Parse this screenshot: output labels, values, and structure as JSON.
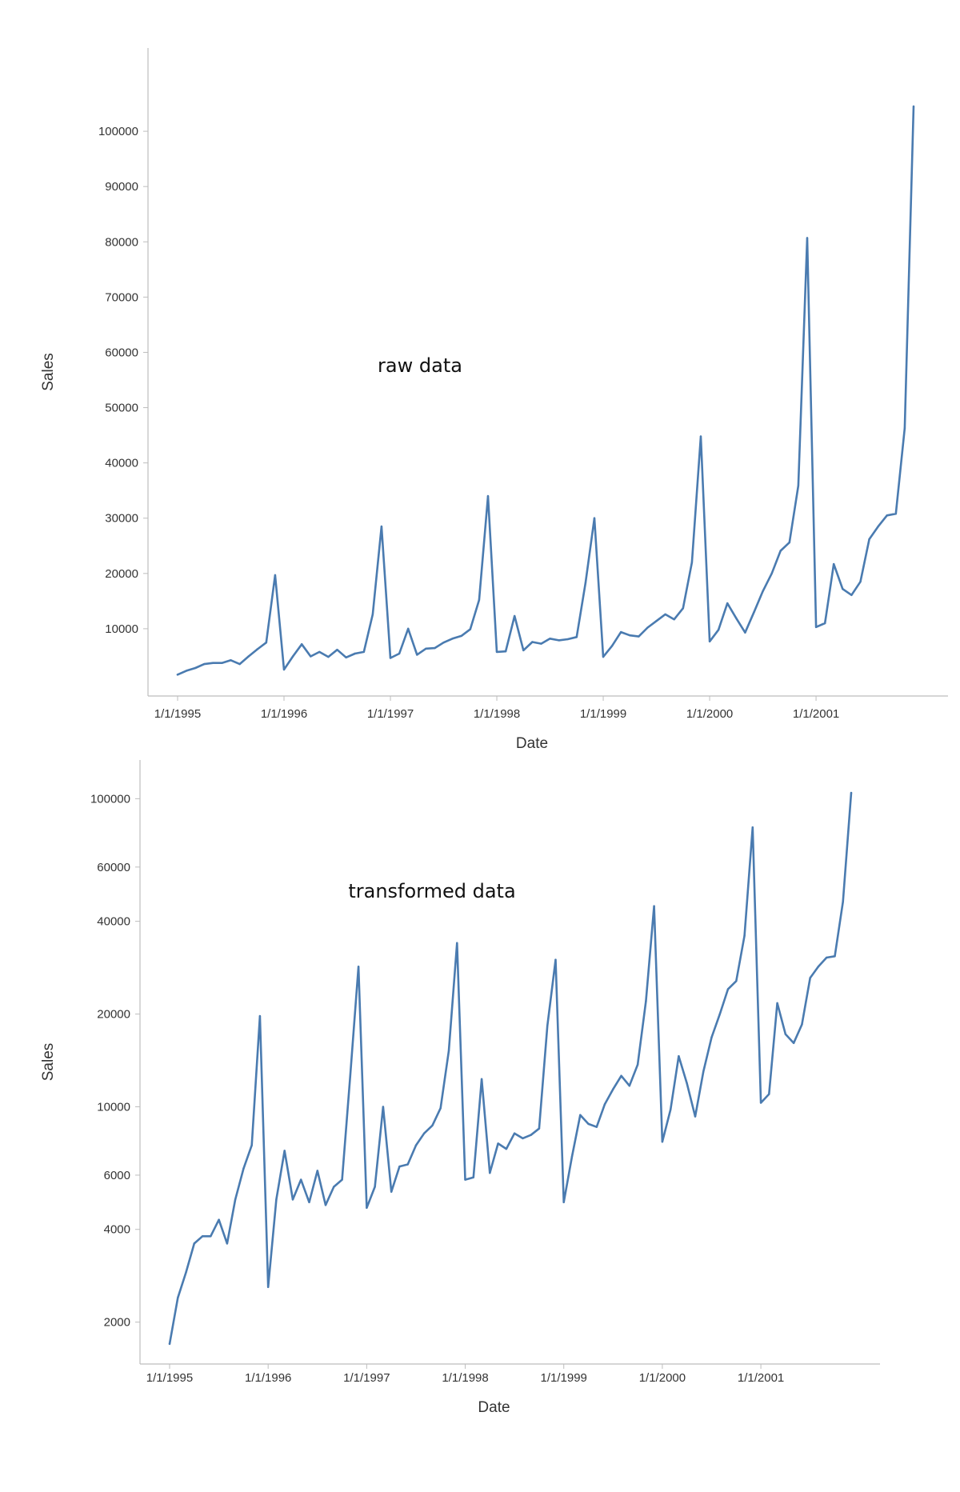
{
  "chart_data": [
    {
      "type": "line",
      "title": "",
      "annotation": "raw data",
      "xlabel": "Date",
      "ylabel": "Sales",
      "yscale": "linear",
      "ylim": [
        0,
        110000
      ],
      "y_ticks": [
        10000,
        20000,
        30000,
        40000,
        50000,
        60000,
        70000,
        80000,
        90000,
        100000
      ],
      "y_tick_labels": [
        "10000",
        "20000",
        "30000",
        "40000",
        "50000",
        "60000",
        "70000",
        "80000",
        "90000",
        "100000"
      ],
      "x_range": [
        "1995-01",
        "2001-12"
      ],
      "x_ticks": [
        "1995-01",
        "1996-01",
        "1997-01",
        "1998-01",
        "1999-01",
        "2000-01",
        "2001-01"
      ],
      "x_tick_labels": [
        "1/1/1995",
        "1/1/1996",
        "1/1/1997",
        "1/1/1998",
        "1/1/1999",
        "1/1/2000",
        "1/1/2001"
      ],
      "grid": false,
      "series": [
        {
          "color": "#4a7bb0",
          "x": [
            "1995-01",
            "1995-02",
            "1995-03",
            "1995-04",
            "1995-05",
            "1995-06",
            "1995-07",
            "1995-08",
            "1995-09",
            "1995-10",
            "1995-11",
            "1995-12",
            "1996-01",
            "1996-02",
            "1996-03",
            "1996-04",
            "1996-05",
            "1996-06",
            "1996-07",
            "1996-08",
            "1996-09",
            "1996-10",
            "1996-11",
            "1996-12",
            "1997-01",
            "1997-02",
            "1997-03",
            "1997-04",
            "1997-05",
            "1997-06",
            "1997-07",
            "1997-08",
            "1997-09",
            "1997-10",
            "1997-11",
            "1997-12",
            "1998-01",
            "1998-02",
            "1998-03",
            "1998-04",
            "1998-05",
            "1998-06",
            "1998-07",
            "1998-08",
            "1998-09",
            "1998-10",
            "1998-11",
            "1998-12",
            "1999-01",
            "1999-02",
            "1999-03",
            "1999-04",
            "1999-05",
            "1999-06",
            "1999-07",
            "1999-08",
            "1999-09",
            "1999-10",
            "1999-11",
            "1999-12",
            "2000-01",
            "2000-02",
            "2000-03",
            "2000-04",
            "2000-05",
            "2000-06",
            "2000-07",
            "2000-08",
            "2000-09",
            "2000-10",
            "2000-11",
            "2000-12",
            "2001-01",
            "2001-02",
            "2001-03",
            "2001-04",
            "2001-05",
            "2001-06",
            "2001-07",
            "2001-08",
            "2001-09",
            "2001-10",
            "2001-11",
            "2001-12"
          ],
          "values": [
            1700,
            2400,
            2900,
            3600,
            3800,
            3800,
            4300,
            3600,
            5000,
            6300,
            7500,
            19700,
            2600,
            5000,
            7200,
            5000,
            5800,
            4900,
            6200,
            4800,
            5500,
            5800,
            12600,
            28500,
            4700,
            5500,
            10000,
            5300,
            6400,
            6500,
            7500,
            8200,
            8700,
            9900,
            15200,
            34000,
            5800,
            5900,
            12300,
            6100,
            7600,
            7300,
            8200,
            7900,
            8100,
            8500,
            18300,
            30000,
            4900,
            6900,
            9400,
            8800,
            8600,
            10200,
            11400,
            12600,
            11700,
            13700,
            22000,
            44800,
            7700,
            9800,
            14600,
            11900,
            9300,
            13000,
            16800,
            20000,
            24100,
            25600,
            35900,
            80700,
            10300,
            11000,
            21700,
            17200,
            16100,
            18500,
            26200,
            28500,
            30500,
            30800,
            46300,
            104500
          ]
        }
      ]
    },
    {
      "type": "line",
      "title": "",
      "annotation": "transformed data",
      "xlabel": "Date",
      "ylabel": "Sales",
      "yscale": "log",
      "ylim": [
        1600,
        115000
      ],
      "y_ticks": [
        2000,
        4000,
        6000,
        10000,
        20000,
        40000,
        60000,
        100000
      ],
      "y_tick_labels": [
        "2000",
        "4000",
        "6000",
        "10000",
        "20000",
        "40000",
        "60000",
        "100000"
      ],
      "x_range": [
        "1995-01",
        "2001-12"
      ],
      "x_ticks": [
        "1995-01",
        "1996-01",
        "1997-01",
        "1998-01",
        "1999-01",
        "2000-01",
        "2001-01"
      ],
      "x_tick_labels": [
        "1/1/1995",
        "1/1/1996",
        "1/1/1997",
        "1/1/1998",
        "1/1/1999",
        "1/1/2000",
        "1/1/2001"
      ],
      "grid": false,
      "series": [
        {
          "color": "#4a7bb0",
          "x": [
            "1995-01",
            "1995-02",
            "1995-03",
            "1995-04",
            "1995-05",
            "1995-06",
            "1995-07",
            "1995-08",
            "1995-09",
            "1995-10",
            "1995-11",
            "1995-12",
            "1996-01",
            "1996-02",
            "1996-03",
            "1996-04",
            "1996-05",
            "1996-06",
            "1996-07",
            "1996-08",
            "1996-09",
            "1996-10",
            "1996-11",
            "1996-12",
            "1997-01",
            "1997-02",
            "1997-03",
            "1997-04",
            "1997-05",
            "1997-06",
            "1997-07",
            "1997-08",
            "1997-09",
            "1997-10",
            "1997-11",
            "1997-12",
            "1998-01",
            "1998-02",
            "1998-03",
            "1998-04",
            "1998-05",
            "1998-06",
            "1998-07",
            "1998-08",
            "1998-09",
            "1998-10",
            "1998-11",
            "1998-12",
            "1999-01",
            "1999-02",
            "1999-03",
            "1999-04",
            "1999-05",
            "1999-06",
            "1999-07",
            "1999-08",
            "1999-09",
            "1999-10",
            "1999-11",
            "1999-12",
            "2000-01",
            "2000-02",
            "2000-03",
            "2000-04",
            "2000-05",
            "2000-06",
            "2000-07",
            "2000-08",
            "2000-09",
            "2000-10",
            "2000-11",
            "2000-12",
            "2001-01",
            "2001-02",
            "2001-03",
            "2001-04",
            "2001-05",
            "2001-06",
            "2001-07",
            "2001-08",
            "2001-09",
            "2001-10",
            "2001-11",
            "2001-12"
          ],
          "values": [
            1700,
            2400,
            2900,
            3600,
            3800,
            3800,
            4300,
            3600,
            5000,
            6300,
            7500,
            19700,
            2600,
            5000,
            7200,
            5000,
            5800,
            4900,
            6200,
            4800,
            5500,
            5800,
            12600,
            28500,
            4700,
            5500,
            10000,
            5300,
            6400,
            6500,
            7500,
            8200,
            8700,
            9900,
            15200,
            34000,
            5800,
            5900,
            12300,
            6100,
            7600,
            7300,
            8200,
            7900,
            8100,
            8500,
            18300,
            30000,
            4900,
            6900,
            9400,
            8800,
            8600,
            10200,
            11400,
            12600,
            11700,
            13700,
            22000,
            44800,
            7700,
            9800,
            14600,
            11900,
            9300,
            13000,
            16800,
            20000,
            24100,
            25600,
            35900,
            80700,
            10300,
            11000,
            21700,
            17200,
            16100,
            18500,
            26200,
            28500,
            30500,
            30800,
            46300,
            104500
          ]
        }
      ]
    }
  ]
}
